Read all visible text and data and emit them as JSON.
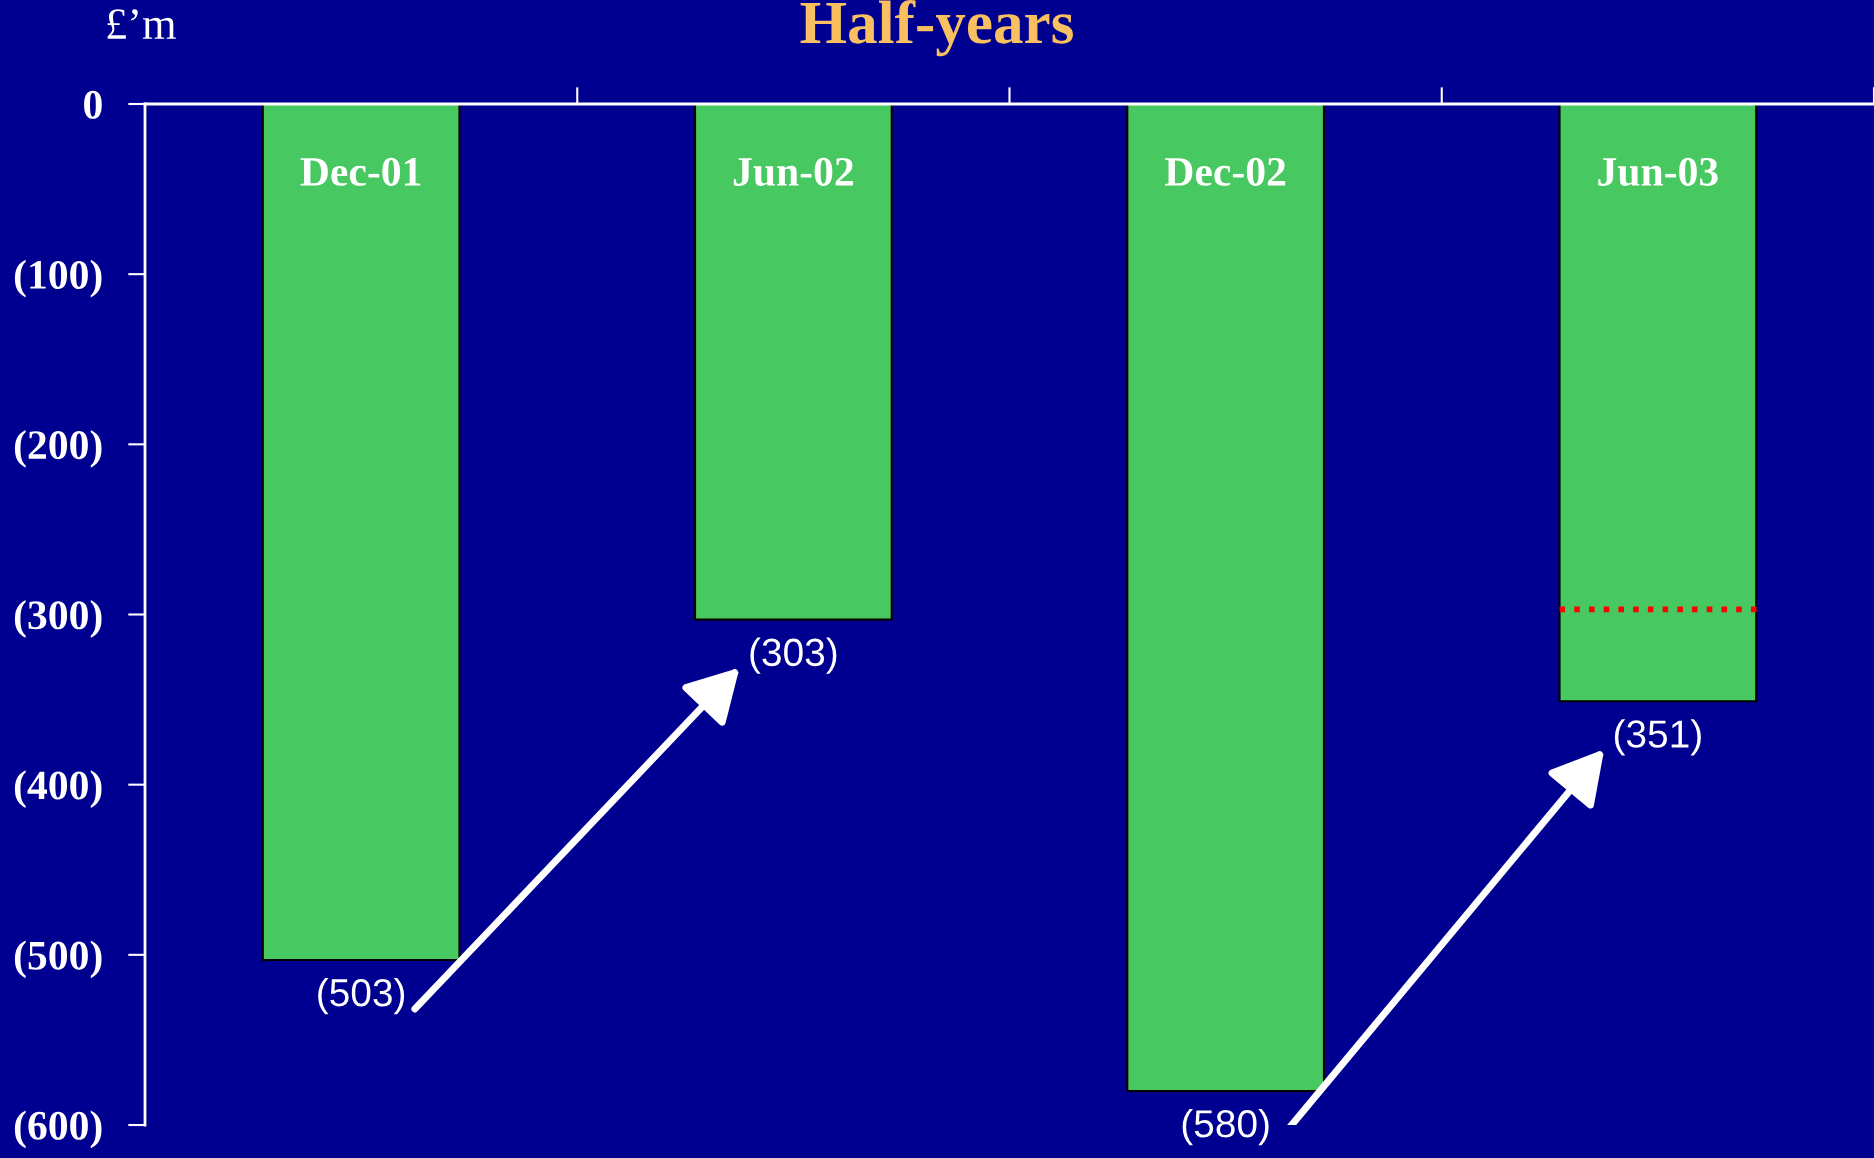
{
  "chart_data": {
    "type": "bar",
    "title": "Half-years",
    "ylabel": "£’m",
    "categories": [
      "Dec-01",
      "Jun-02",
      "Dec-02",
      "Jun-03"
    ],
    "values": [
      -503,
      -303,
      -580,
      -351
    ],
    "color": "#48c860",
    "value_labels": [
      "(503)",
      "(303)",
      "(580)",
      "(351)"
    ],
    "ylim": [
      -600,
      0
    ],
    "yticks": [
      {
        "value": 0,
        "label": "0"
      },
      {
        "value": -100,
        "label": "(100)"
      },
      {
        "value": -200,
        "label": "(200)"
      },
      {
        "value": -300,
        "label": "(300)"
      },
      {
        "value": -400,
        "label": "(400)"
      },
      {
        "value": -500,
        "label": "(500)"
      },
      {
        "value": -600,
        "label": "(600)"
      }
    ],
    "ref_lines": [
      {
        "axis": "y",
        "value": -297,
        "color": "#ff0000",
        "line_style": "dotted"
      }
    ],
    "grid": false,
    "legend": false
  }
}
